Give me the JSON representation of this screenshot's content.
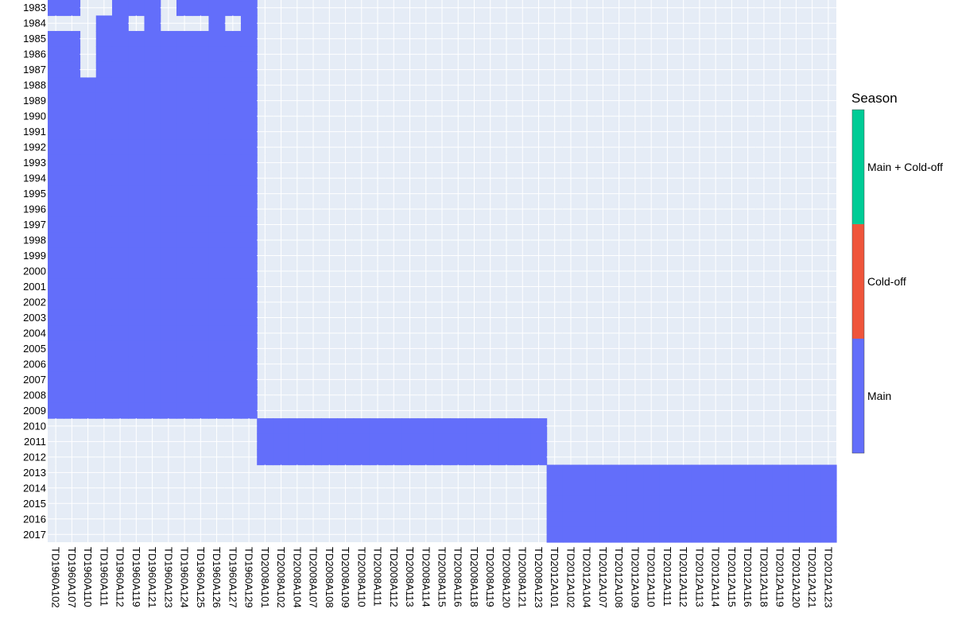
{
  "chart_data": {
    "type": "heatmap",
    "title": "",
    "xlabel": "",
    "ylabel": "",
    "x": [
      "TD1960A102",
      "TD1960A107",
      "TD1960A110",
      "TD1960A111",
      "TD1960A112",
      "TD1960A119",
      "TD1960A121",
      "TD1960A123",
      "TD1960A124",
      "TD1960A125",
      "TD1960A126",
      "TD1960A127",
      "TD1960A129",
      "TD2008A101",
      "TD2008A102",
      "TD2008A104",
      "TD2008A107",
      "TD2008A108",
      "TD2008A109",
      "TD2008A110",
      "TD2008A111",
      "TD2008A112",
      "TD2008A113",
      "TD2008A114",
      "TD2008A115",
      "TD2008A116",
      "TD2008A118",
      "TD2008A119",
      "TD2008A120",
      "TD2008A121",
      "TD2008A123",
      "TD2012A101",
      "TD2012A102",
      "TD2012A104",
      "TD2012A107",
      "TD2012A108",
      "TD2012A109",
      "TD2012A110",
      "TD2012A111",
      "TD2012A112",
      "TD2012A113",
      "TD2012A114",
      "TD2012A115",
      "TD2012A116",
      "TD2012A118",
      "TD2012A119",
      "TD2012A120",
      "TD2012A121",
      "TD2012A123"
    ],
    "y": [
      1983,
      1984,
      1985,
      1986,
      1987,
      1988,
      1989,
      1990,
      1991,
      1992,
      1993,
      1994,
      1995,
      1996,
      1997,
      1998,
      1999,
      2000,
      2001,
      2002,
      2003,
      2004,
      2005,
      2006,
      2007,
      2008,
      2009,
      2010,
      2011,
      2012,
      2013,
      2014,
      2015,
      2016,
      2017
    ],
    "categories": [
      "Main",
      "Cold-off",
      "Main + Cold-off"
    ],
    "colors": {
      "Main": "#636efa",
      "Cold-off": "#ef553b",
      "Main + Cold-off": "#00cc96",
      "empty": "#e5ecf6",
      "grid": "#ffffff"
    },
    "blocks": [
      {
        "category": "Main",
        "x_from": "TD1960A102",
        "x_to": "TD1960A129",
        "y_from": 1983,
        "y_to": 2009
      },
      {
        "category": "Main",
        "x_from": "TD2008A101",
        "x_to": "TD2008A123",
        "y_from": 2010,
        "y_to": 2012
      },
      {
        "category": "Main",
        "x_from": "TD2012A101",
        "x_to": "TD2012A123",
        "y_from": 2013,
        "y_to": 2017
      }
    ],
    "missing_cells": [
      {
        "x": "TD1960A110",
        "y": 1983
      },
      {
        "x": "TD1960A111",
        "y": 1983
      },
      {
        "x": "TD1960A123",
        "y": 1983
      },
      {
        "x": "TD1960A102",
        "y": 1984
      },
      {
        "x": "TD1960A107",
        "y": 1984
      },
      {
        "x": "TD1960A110",
        "y": 1984
      },
      {
        "x": "TD1960A119",
        "y": 1984
      },
      {
        "x": "TD1960A123",
        "y": 1984
      },
      {
        "x": "TD1960A124",
        "y": 1984
      },
      {
        "x": "TD1960A125",
        "y": 1984
      },
      {
        "x": "TD1960A127",
        "y": 1984
      },
      {
        "x": "TD1960A110",
        "y": 1985
      },
      {
        "x": "TD1960A110",
        "y": 1986
      },
      {
        "x": "TD1960A110",
        "y": 1987
      }
    ],
    "legend": {
      "title": "Season",
      "position": "right",
      "entries": [
        "Main",
        "Cold-off",
        "Main + Cold-off"
      ]
    }
  }
}
